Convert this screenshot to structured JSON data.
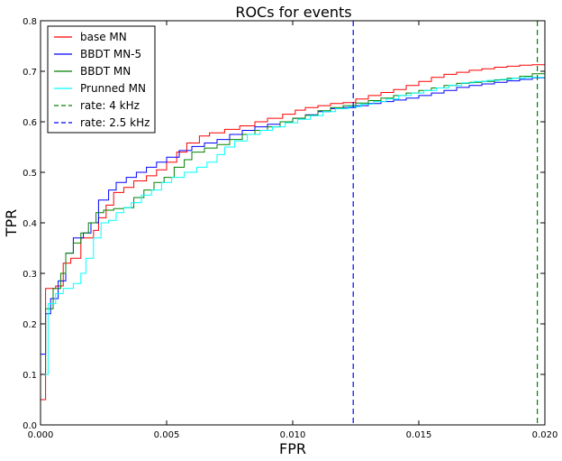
{
  "chart_data": {
    "type": "line",
    "title": "ROCs for events",
    "xlabel": "FPR",
    "ylabel": "TPR",
    "xlim": [
      0.0,
      0.02
    ],
    "ylim": [
      0.0,
      0.8
    ],
    "xticks": [
      "0.000",
      "0.005",
      "0.010",
      "0.015",
      "0.020"
    ],
    "yticks": [
      "0.0",
      "0.1",
      "0.2",
      "0.3",
      "0.4",
      "0.5",
      "0.6",
      "0.7",
      "0.8"
    ],
    "grid": false,
    "legend_position": "top-left",
    "series": [
      {
        "name": "base MN",
        "color": "#ff0000",
        "style": "step",
        "points": [
          [
            0.0,
            0.05
          ],
          [
            0.0002,
            0.05
          ],
          [
            0.0002,
            0.27
          ],
          [
            0.0006,
            0.275
          ],
          [
            0.0009,
            0.32
          ],
          [
            0.0012,
            0.33
          ],
          [
            0.0016,
            0.37
          ],
          [
            0.0021,
            0.385
          ],
          [
            0.0023,
            0.41
          ],
          [
            0.0026,
            0.435
          ],
          [
            0.0029,
            0.46
          ],
          [
            0.0033,
            0.47
          ],
          [
            0.0037,
            0.483
          ],
          [
            0.0042,
            0.493
          ],
          [
            0.0046,
            0.505
          ],
          [
            0.005,
            0.52
          ],
          [
            0.0054,
            0.54
          ],
          [
            0.0058,
            0.558
          ],
          [
            0.0063,
            0.572
          ],
          [
            0.0067,
            0.578
          ],
          [
            0.0073,
            0.585
          ],
          [
            0.0079,
            0.592
          ],
          [
            0.0085,
            0.6
          ],
          [
            0.009,
            0.607
          ],
          [
            0.0096,
            0.615
          ],
          [
            0.0101,
            0.623
          ],
          [
            0.0105,
            0.628
          ],
          [
            0.011,
            0.632
          ],
          [
            0.0115,
            0.636
          ],
          [
            0.012,
            0.638
          ],
          [
            0.0125,
            0.645
          ],
          [
            0.013,
            0.652
          ],
          [
            0.0135,
            0.658
          ],
          [
            0.014,
            0.664
          ],
          [
            0.0145,
            0.672
          ],
          [
            0.015,
            0.68
          ],
          [
            0.0155,
            0.688
          ],
          [
            0.016,
            0.694
          ],
          [
            0.0165,
            0.698
          ],
          [
            0.017,
            0.702
          ],
          [
            0.0175,
            0.705
          ],
          [
            0.018,
            0.708
          ],
          [
            0.0185,
            0.71
          ],
          [
            0.019,
            0.712
          ],
          [
            0.0195,
            0.713
          ],
          [
            0.02,
            0.714
          ]
        ]
      },
      {
        "name": "BBDT MN-5",
        "color": "#0000ff",
        "style": "step",
        "points": [
          [
            0.0,
            0.14
          ],
          [
            0.0002,
            0.14
          ],
          [
            0.0002,
            0.22
          ],
          [
            0.0004,
            0.25
          ],
          [
            0.0007,
            0.285
          ],
          [
            0.001,
            0.34
          ],
          [
            0.0013,
            0.37
          ],
          [
            0.0017,
            0.38
          ],
          [
            0.002,
            0.4
          ],
          [
            0.0023,
            0.445
          ],
          [
            0.0027,
            0.465
          ],
          [
            0.003,
            0.48
          ],
          [
            0.0034,
            0.49
          ],
          [
            0.0038,
            0.5
          ],
          [
            0.0042,
            0.51
          ],
          [
            0.0046,
            0.52
          ],
          [
            0.005,
            0.53
          ],
          [
            0.0055,
            0.543
          ],
          [
            0.006,
            0.551
          ],
          [
            0.0065,
            0.558
          ],
          [
            0.007,
            0.565
          ],
          [
            0.0075,
            0.575
          ],
          [
            0.008,
            0.583
          ],
          [
            0.0085,
            0.59
          ],
          [
            0.009,
            0.595
          ],
          [
            0.0095,
            0.6
          ],
          [
            0.01,
            0.607
          ],
          [
            0.0105,
            0.614
          ],
          [
            0.011,
            0.62
          ],
          [
            0.0115,
            0.626
          ],
          [
            0.012,
            0.628
          ],
          [
            0.0125,
            0.632
          ],
          [
            0.013,
            0.636
          ],
          [
            0.0135,
            0.64
          ],
          [
            0.014,
            0.643
          ],
          [
            0.0145,
            0.647
          ],
          [
            0.015,
            0.652
          ],
          [
            0.0155,
            0.657
          ],
          [
            0.016,
            0.662
          ],
          [
            0.0165,
            0.668
          ],
          [
            0.017,
            0.672
          ],
          [
            0.0175,
            0.675
          ],
          [
            0.018,
            0.678
          ],
          [
            0.0185,
            0.681
          ],
          [
            0.019,
            0.684
          ],
          [
            0.0195,
            0.687
          ],
          [
            0.02,
            0.689
          ]
        ]
      },
      {
        "name": "BBDT MN",
        "color": "#008000",
        "style": "step",
        "points": [
          [
            0.0,
            0.1
          ],
          [
            0.0002,
            0.1
          ],
          [
            0.0002,
            0.23
          ],
          [
            0.0005,
            0.27
          ],
          [
            0.0008,
            0.3
          ],
          [
            0.001,
            0.34
          ],
          [
            0.0013,
            0.36
          ],
          [
            0.0016,
            0.38
          ],
          [
            0.0019,
            0.4
          ],
          [
            0.0022,
            0.42
          ],
          [
            0.0025,
            0.425
          ],
          [
            0.0029,
            0.428
          ],
          [
            0.0033,
            0.43
          ],
          [
            0.0037,
            0.45
          ],
          [
            0.0041,
            0.465
          ],
          [
            0.0045,
            0.48
          ],
          [
            0.0049,
            0.49
          ],
          [
            0.0053,
            0.51
          ],
          [
            0.0057,
            0.525
          ],
          [
            0.006,
            0.54
          ],
          [
            0.0065,
            0.548
          ],
          [
            0.007,
            0.555
          ],
          [
            0.0075,
            0.565
          ],
          [
            0.008,
            0.575
          ],
          [
            0.0085,
            0.583
          ],
          [
            0.009,
            0.59
          ],
          [
            0.0095,
            0.6
          ],
          [
            0.01,
            0.607
          ],
          [
            0.0105,
            0.613
          ],
          [
            0.011,
            0.622
          ],
          [
            0.0115,
            0.628
          ],
          [
            0.012,
            0.632
          ],
          [
            0.0125,
            0.637
          ],
          [
            0.013,
            0.642
          ],
          [
            0.0135,
            0.647
          ],
          [
            0.014,
            0.652
          ],
          [
            0.0145,
            0.657
          ],
          [
            0.015,
            0.662
          ],
          [
            0.0155,
            0.667
          ],
          [
            0.016,
            0.672
          ],
          [
            0.0165,
            0.676
          ],
          [
            0.017,
            0.678
          ],
          [
            0.0175,
            0.68
          ],
          [
            0.018,
            0.683
          ],
          [
            0.0185,
            0.686
          ],
          [
            0.019,
            0.69
          ],
          [
            0.0195,
            0.695
          ],
          [
            0.02,
            0.7
          ]
        ]
      },
      {
        "name": "Prunned MN",
        "color": "#00ffff",
        "style": "step",
        "points": [
          [
            0.0,
            0.1
          ],
          [
            0.0003,
            0.1
          ],
          [
            0.0003,
            0.24
          ],
          [
            0.0006,
            0.26
          ],
          [
            0.0009,
            0.27
          ],
          [
            0.0013,
            0.28
          ],
          [
            0.0016,
            0.3
          ],
          [
            0.0018,
            0.33
          ],
          [
            0.0021,
            0.37
          ],
          [
            0.0024,
            0.4
          ],
          [
            0.0027,
            0.405
          ],
          [
            0.003,
            0.42
          ],
          [
            0.0033,
            0.43
          ],
          [
            0.0036,
            0.44
          ],
          [
            0.004,
            0.455
          ],
          [
            0.0044,
            0.465
          ],
          [
            0.0048,
            0.48
          ],
          [
            0.0052,
            0.49
          ],
          [
            0.0057,
            0.5
          ],
          [
            0.0062,
            0.51
          ],
          [
            0.0066,
            0.52
          ],
          [
            0.007,
            0.535
          ],
          [
            0.0073,
            0.55
          ],
          [
            0.0077,
            0.562
          ],
          [
            0.0082,
            0.575
          ],
          [
            0.0087,
            0.583
          ],
          [
            0.0092,
            0.59
          ],
          [
            0.0097,
            0.598
          ],
          [
            0.0102,
            0.605
          ],
          [
            0.0107,
            0.612
          ],
          [
            0.0112,
            0.62
          ],
          [
            0.0117,
            0.626
          ],
          [
            0.0122,
            0.63
          ],
          [
            0.0127,
            0.635
          ],
          [
            0.0132,
            0.64
          ],
          [
            0.0137,
            0.645
          ],
          [
            0.0142,
            0.652
          ],
          [
            0.0147,
            0.657
          ],
          [
            0.0152,
            0.662
          ],
          [
            0.0157,
            0.667
          ],
          [
            0.0162,
            0.672
          ],
          [
            0.0167,
            0.677
          ],
          [
            0.0172,
            0.68
          ],
          [
            0.0177,
            0.682
          ],
          [
            0.0182,
            0.684
          ],
          [
            0.0187,
            0.686
          ],
          [
            0.0192,
            0.688
          ],
          [
            0.02,
            0.69
          ]
        ]
      },
      {
        "name": "rate: 4 kHz",
        "color": "#008000",
        "style": "vline",
        "x": 0.0197
      },
      {
        "name": "rate: 2.5 kHz",
        "color": "#0000ff",
        "style": "vline",
        "x": 0.0124
      }
    ]
  }
}
